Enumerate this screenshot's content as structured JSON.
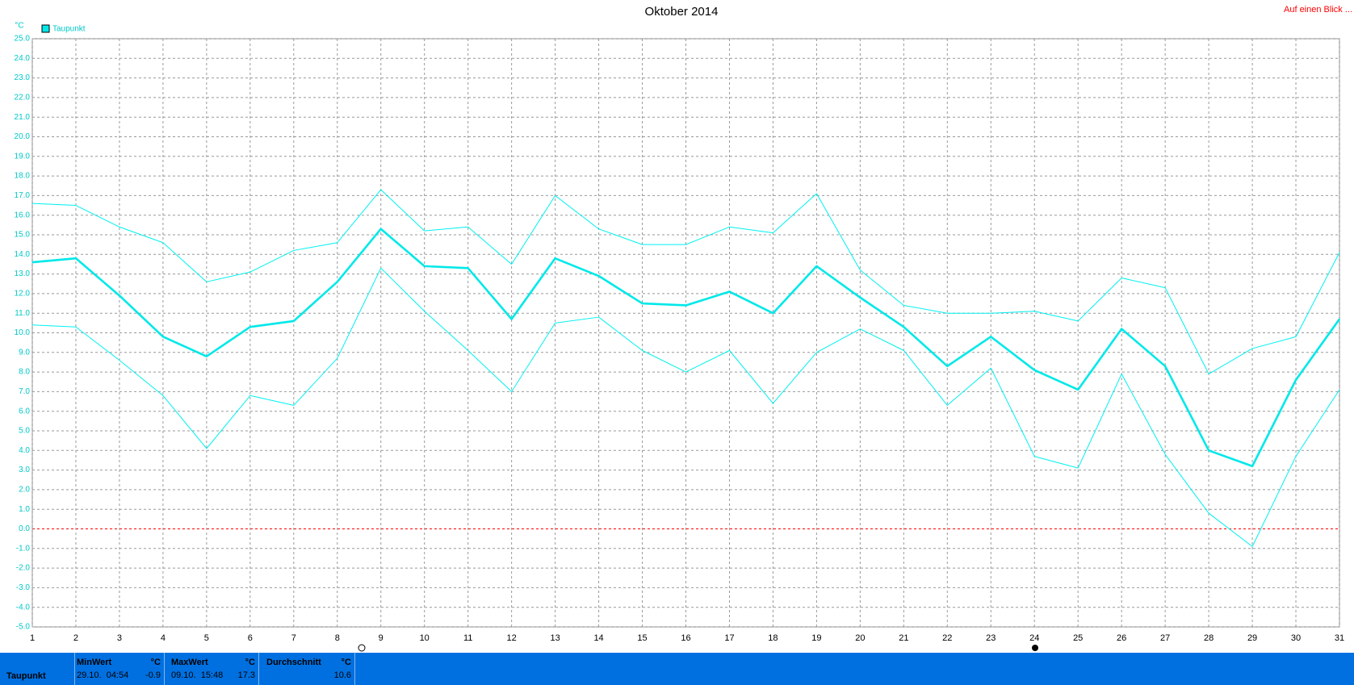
{
  "chart_data": {
    "type": "line",
    "title": "Oktober 2014",
    "note": "Auf einen Blick ...",
    "y_unit": "°C",
    "x": [
      1,
      2,
      3,
      4,
      5,
      6,
      7,
      8,
      9,
      10,
      11,
      12,
      13,
      14,
      15,
      16,
      17,
      18,
      19,
      20,
      21,
      22,
      23,
      24,
      25,
      26,
      27,
      28,
      29,
      30,
      31
    ],
    "xlim": [
      1,
      31
    ],
    "xticks": [
      1,
      2,
      3,
      4,
      5,
      6,
      7,
      8,
      9,
      10,
      11,
      12,
      13,
      14,
      15,
      16,
      17,
      18,
      19,
      20,
      21,
      22,
      23,
      24,
      25,
      26,
      27,
      28,
      29,
      30,
      31
    ],
    "ylim": [
      -5,
      25
    ],
    "yticks": [
      {
        "value": -5,
        "label": "-5.0"
      },
      {
        "value": -4,
        "label": "-4.0"
      },
      {
        "value": -3,
        "label": "-3.0"
      },
      {
        "value": -2,
        "label": "-2.0"
      },
      {
        "value": -1,
        "label": "-1.0"
      },
      {
        "value": 0,
        "label": "0.0"
      },
      {
        "value": 1,
        "label": "1.0"
      },
      {
        "value": 2,
        "label": "2.0"
      },
      {
        "value": 3,
        "label": "3.0"
      },
      {
        "value": 4,
        "label": "4.0"
      },
      {
        "value": 5,
        "label": "5.0"
      },
      {
        "value": 6,
        "label": "6.0"
      },
      {
        "value": 7,
        "label": "7.0"
      },
      {
        "value": 8,
        "label": "8.0"
      },
      {
        "value": 9,
        "label": "9.0"
      },
      {
        "value": 10,
        "label": "10.0"
      },
      {
        "value": 11,
        "label": "11.0"
      },
      {
        "value": 12,
        "label": "12.0"
      },
      {
        "value": 13,
        "label": "13.0"
      },
      {
        "value": 14,
        "label": "14.0"
      },
      {
        "value": 15,
        "label": "15.0"
      },
      {
        "value": 16,
        "label": "16.0"
      },
      {
        "value": 17,
        "label": "17.0"
      },
      {
        "value": 18,
        "label": "18.0"
      },
      {
        "value": 19,
        "label": "19.0"
      },
      {
        "value": 20,
        "label": "20.0"
      },
      {
        "value": 21,
        "label": "21.0"
      },
      {
        "value": 22,
        "label": "22.0"
      },
      {
        "value": 23,
        "label": "23.0"
      },
      {
        "value": 24,
        "label": "24.0"
      },
      {
        "value": 25,
        "label": "25.0"
      }
    ],
    "grid": true,
    "zero_line_color": "#ff0000",
    "legend": "top-left",
    "series": [
      {
        "name": "Taupunkt",
        "color": "#00e8e8",
        "line_width": 2.6,
        "values": [
          13.6,
          13.8,
          11.9,
          9.8,
          8.8,
          10.3,
          10.6,
          12.6,
          15.3,
          13.4,
          13.3,
          10.7,
          13.8,
          12.9,
          11.5,
          11.4,
          12.1,
          11.0,
          13.4,
          11.8,
          10.3,
          8.3,
          9.8,
          8.1,
          7.1,
          10.2,
          8.3,
          4.0,
          3.2,
          7.6,
          10.7
        ]
      },
      {
        "color": "#00f0f0",
        "line_width": 1,
        "values": [
          16.6,
          16.5,
          15.4,
          14.6,
          12.6,
          13.1,
          14.2,
          14.6,
          17.3,
          15.2,
          15.4,
          13.5,
          17.0,
          15.3,
          14.5,
          14.5,
          15.4,
          15.1,
          17.1,
          13.2,
          11.4,
          11.0,
          11.0,
          11.1,
          10.6,
          12.8,
          12.3,
          7.9,
          9.2,
          9.8,
          14.1
        ]
      },
      {
        "color": "#00f0f0",
        "line_width": 1,
        "values": [
          10.4,
          10.3,
          8.6,
          6.8,
          4.1,
          6.8,
          6.3,
          8.7,
          13.3,
          11.1,
          9.1,
          7.0,
          10.5,
          10.8,
          9.1,
          8.0,
          9.1,
          6.4,
          9.0,
          10.2,
          9.1,
          6.3,
          8.2,
          3.7,
          3.1,
          7.9,
          3.8,
          0.8,
          -0.9,
          3.7,
          7.1
        ]
      }
    ]
  },
  "summary": {
    "label": "Taupunkt",
    "columns": [
      {
        "title": "MinWert",
        "unit": "°C",
        "time": "29.10.  04:54",
        "value": "-0.9"
      },
      {
        "title": "MaxWert",
        "unit": "°C",
        "time": "09.10.  15:48",
        "value": "17.3"
      },
      {
        "title": "Durchschnitt",
        "unit": "°C",
        "value": "10.6"
      }
    ]
  }
}
